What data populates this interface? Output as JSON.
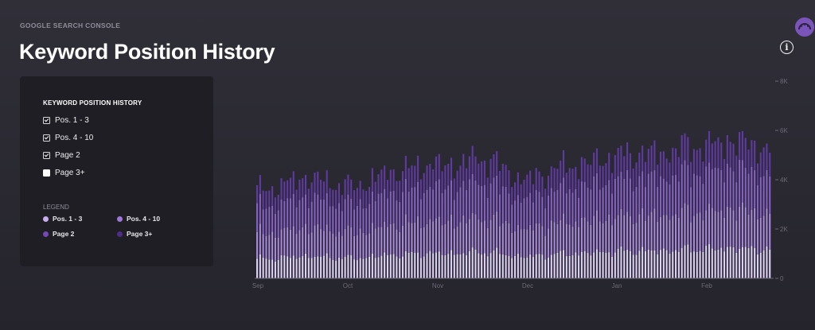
{
  "header": {
    "overline": "GOOGLE SEARCH CONSOLE",
    "title": "Keyword Position History"
  },
  "panel": {
    "title": "KEYWORD POSITION HISTORY",
    "filters": [
      {
        "label": "Pos. 1 - 3",
        "checked": true
      },
      {
        "label": "Pos. 4 - 10",
        "checked": true
      },
      {
        "label": "Page 2",
        "checked": true
      },
      {
        "label": "Page 3+",
        "checked": false
      }
    ],
    "legend_title": "LEGEND",
    "legend": [
      {
        "label": "Pos. 1 - 3",
        "color": "#c7aef0"
      },
      {
        "label": "Pos. 4 - 10",
        "color": "#9d78d6"
      },
      {
        "label": "Page 2",
        "color": "#7448b4"
      },
      {
        "label": "Page 3+",
        "color": "#4e2d86"
      }
    ]
  },
  "icons": {
    "avatar": "avatar-icon",
    "info": "info-icon"
  },
  "colors": {
    "pos_1_3": "#ddd0f6",
    "pos_4_10": "#a888dd",
    "page_2": "#8660c8",
    "page_3_plus": "#5f3a9f"
  },
  "chart_data": {
    "type": "bar",
    "stacked": true,
    "x_labels": [
      "Sep",
      "Oct",
      "Nov",
      "Dec",
      "Jan",
      "Feb"
    ],
    "y_ticks": [
      "0",
      "2K",
      "4K",
      "6K",
      "8K"
    ],
    "ylim": [
      0,
      8000
    ],
    "grid": false,
    "legend_position": "left panel",
    "series_names": [
      "Pos. 1 - 3",
      "Pos. 4 - 10",
      "Page 2",
      "Page 3+"
    ],
    "weekly_totals": [
      3600,
      3700,
      4100,
      4000,
      3750,
      3800,
      4300,
      4400,
      4650,
      4550,
      4800,
      4850,
      4100,
      4050,
      4500,
      4600,
      4800,
      5000,
      5100,
      5050,
      5350,
      5350,
      5600,
      5450,
      5300
    ],
    "shares": [
      0.22,
      0.28,
      0.3,
      0.2
    ]
  }
}
